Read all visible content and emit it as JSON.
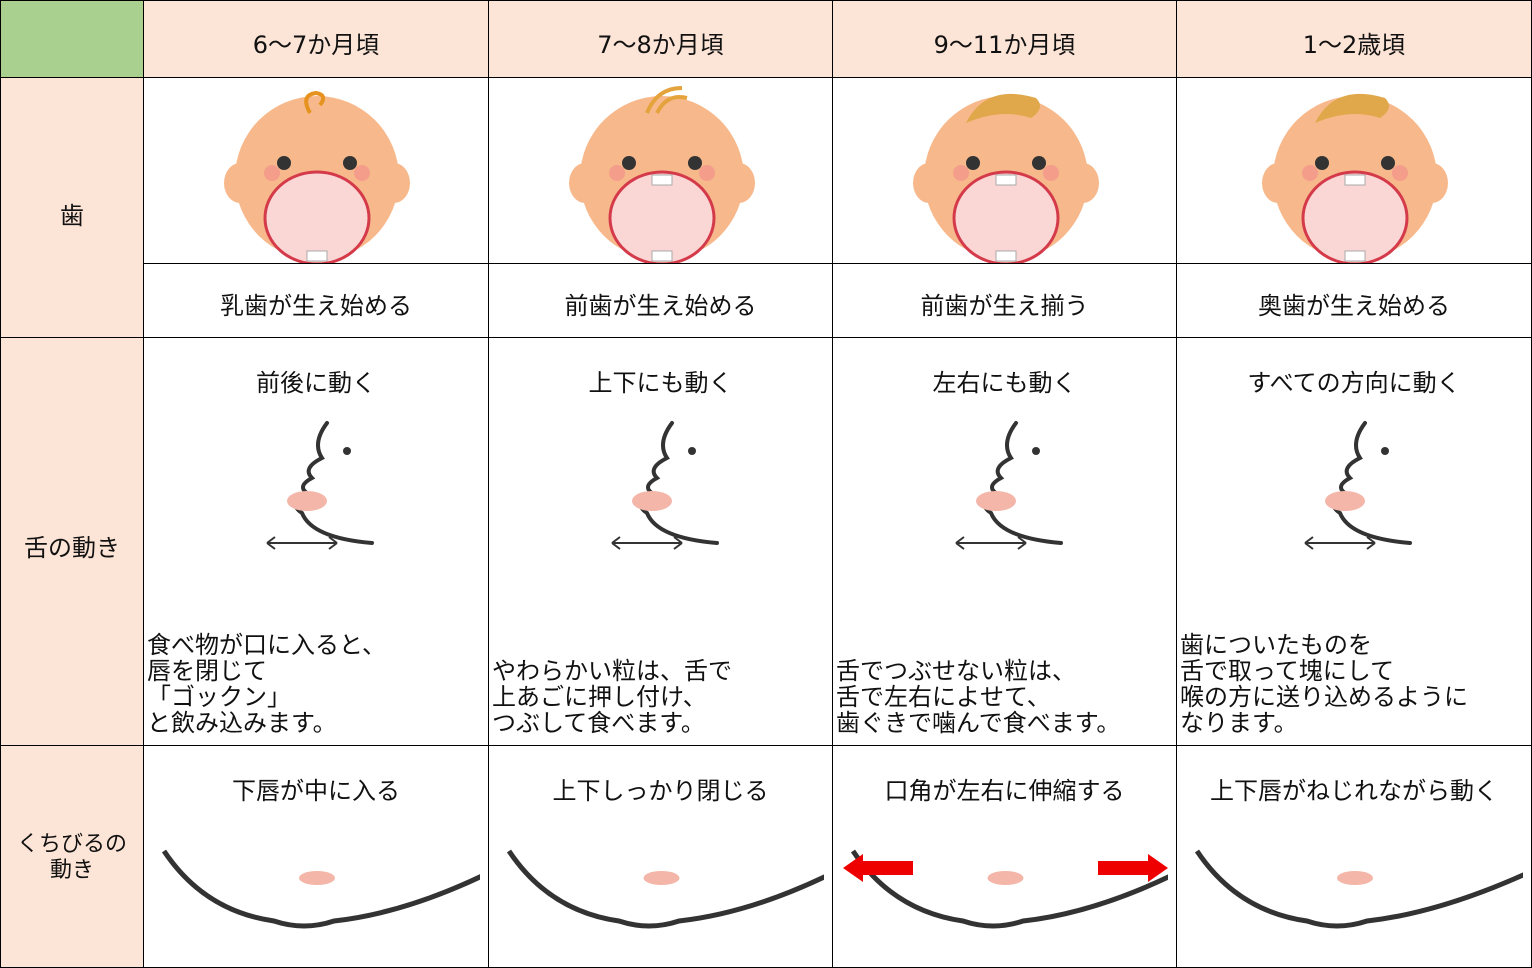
{
  "header": {
    "columns": [
      "6〜7か月頃",
      "7〜8か月頃",
      "9〜11か月頃",
      "1〜2歳頃"
    ]
  },
  "teeth": {
    "label": "歯",
    "captions": [
      "乳歯が生え始める",
      "前歯が生え始める",
      "前歯が生え揃う",
      "奥歯が生え始める"
    ]
  },
  "tongue": {
    "label": "舌の動き",
    "titles": [
      "前後に動く",
      "上下にも動く",
      "左右にも動く",
      "すべての方向に動く"
    ],
    "descriptions": [
      [
        "食べ物が口に入ると、",
        "唇を閉じて",
        "「ゴックン」",
        "と飲み込みます。"
      ],
      [
        "やわらかい粒は、舌で",
        "上あごに押し付け、",
        "つぶして食べます。"
      ],
      [
        "舌でつぶせない粒は、",
        "舌で左右によせて、",
        "歯ぐきで噛んで食べます。"
      ],
      [
        "歯についたものを",
        "舌で取って塊にして",
        "喉の方に送り込めるように",
        "なります。"
      ]
    ]
  },
  "lips": {
    "label": [
      "くちびるの",
      "動き"
    ],
    "titles": [
      "下唇が中に入る",
      "上下しっかり閉じる",
      "口角が左右に伸縮する",
      "上下唇がねじれながら動く"
    ]
  }
}
